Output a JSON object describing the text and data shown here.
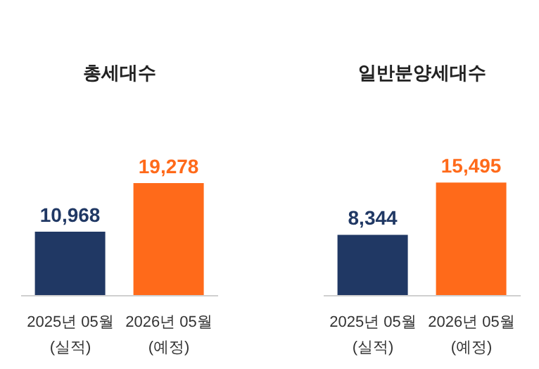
{
  "chart_data": [
    {
      "type": "bar",
      "title": "총세대수",
      "categories": [
        "2025년 05월 (실적)",
        "2026년 05월 (예정)"
      ],
      "values": [
        10968,
        19278
      ],
      "value_labels": [
        "10,968",
        "19,278"
      ],
      "colors": [
        "#203864",
        "#ff6a1a"
      ]
    },
    {
      "type": "bar",
      "title": "일반분양세대수",
      "categories": [
        "2025년 05월 (실적)",
        "2026년 05월 (예정)"
      ],
      "values": [
        8344,
        15495
      ],
      "value_labels": [
        "8,344",
        "15,495"
      ],
      "colors": [
        "#203864",
        "#ff6a1a"
      ]
    }
  ]
}
